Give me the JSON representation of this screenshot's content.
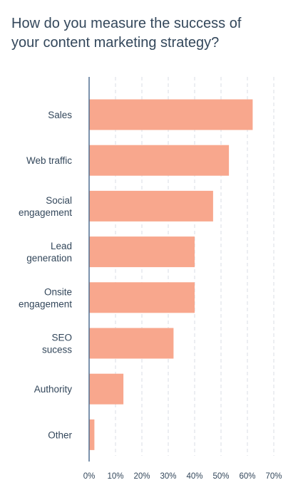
{
  "chart_data": {
    "type": "bar",
    "orientation": "horizontal",
    "title_lines": [
      "How do you measure the success of",
      "your content marketing strategy?"
    ],
    "categories": [
      [
        "Sales"
      ],
      [
        "Web traffic"
      ],
      [
        "Social",
        "engagement"
      ],
      [
        "Lead",
        "generation"
      ],
      [
        "Onsite",
        "engagement"
      ],
      [
        "SEO",
        "sucess"
      ],
      [
        "Authority"
      ],
      [
        "Other"
      ]
    ],
    "values": [
      62,
      53,
      47,
      40,
      40,
      32,
      13,
      2
    ],
    "xlim": [
      0,
      70
    ],
    "xticks": [
      0,
      10,
      20,
      30,
      40,
      50,
      60,
      70
    ],
    "tick_suffix": "%",
    "grid": "vertical-dashed",
    "bar_color": "#f8a78d",
    "axis_color": "#516f90",
    "grid_color": "#d9dee5",
    "text_color": "#33475b"
  }
}
